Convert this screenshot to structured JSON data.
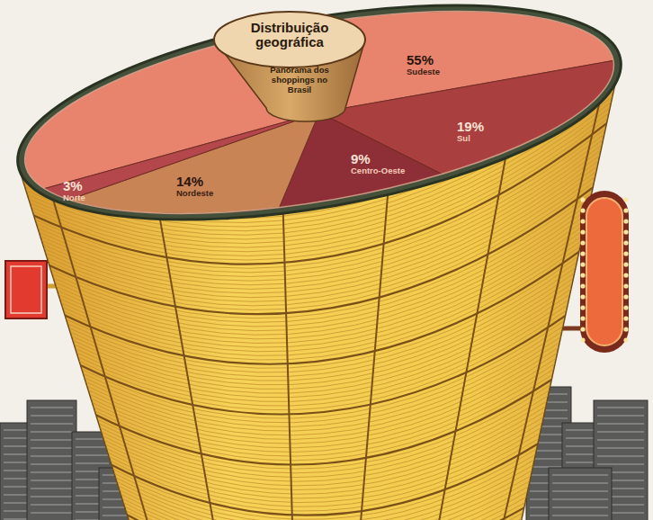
{
  "chart_data": {
    "type": "pie",
    "title": "Distribuição geográfica",
    "subtitle": "Panorama dos shoppings no Brasil",
    "categories": [
      "Sudeste",
      "Sul",
      "Centro-Oeste",
      "Nordeste",
      "Norte"
    ],
    "values": [
      55,
      19,
      9,
      14,
      3
    ],
    "value_labels": [
      "55%",
      "19%",
      "9%",
      "14%",
      "3%"
    ],
    "colors": [
      "#e8836e",
      "#a9403f",
      "#8e2f38",
      "#c98456",
      "#b3474b"
    ],
    "data_labels": true
  }
}
